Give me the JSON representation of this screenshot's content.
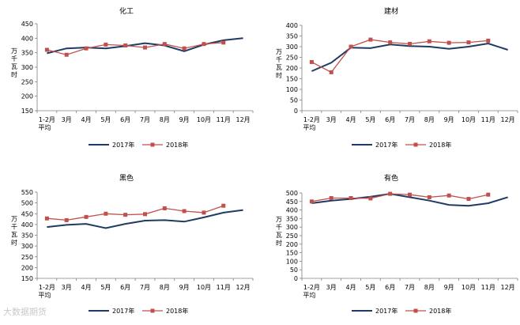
{
  "colors": {
    "series_2017": "#1f3b63",
    "series_2018": "#c0504d",
    "axis": "#808080",
    "text": "#000000"
  },
  "chart_data": [
    {
      "type": "line",
      "title": "化工",
      "ylabel": "万千瓦时",
      "ylim": [
        150,
        450
      ],
      "ystep": 50,
      "categories": [
        "1-2月平均",
        "3月",
        "4月",
        "5月",
        "6月",
        "7月",
        "8月",
        "9月",
        "10月",
        "11月",
        "12月"
      ],
      "series": [
        {
          "name": "2017年",
          "values": [
            348,
            365,
            368,
            365,
            373,
            383,
            375,
            355,
            378,
            393,
            400
          ]
        },
        {
          "name": "2018年",
          "values": [
            360,
            343,
            365,
            378,
            375,
            368,
            380,
            365,
            380,
            385,
            null
          ]
        }
      ]
    },
    {
      "type": "line",
      "title": "建材",
      "ylabel": "万千瓦时",
      "ylim": [
        0,
        400
      ],
      "ystep": 50,
      "categories": [
        "1-2月平均",
        "3月",
        "4月",
        "5月",
        "6月",
        "7月",
        "8月",
        "9月",
        "10月",
        "11月",
        "12月"
      ],
      "series": [
        {
          "name": "2017年",
          "values": [
            185,
            225,
            295,
            293,
            310,
            303,
            300,
            290,
            300,
            315,
            285
          ]
        },
        {
          "name": "2018年",
          "values": [
            228,
            180,
            300,
            333,
            320,
            313,
            325,
            318,
            320,
            328,
            null
          ]
        }
      ]
    },
    {
      "type": "line",
      "title": "黑色",
      "ylabel": "万千瓦时",
      "ylim": [
        150,
        550
      ],
      "ystep": 50,
      "categories": [
        "1-2月平均",
        "3月",
        "4月",
        "5月",
        "6月",
        "7月",
        "8月",
        "9月",
        "10月",
        "11月",
        "12月"
      ],
      "series": [
        {
          "name": "2017年",
          "values": [
            388,
            398,
            403,
            383,
            403,
            418,
            420,
            413,
            433,
            455,
            467
          ]
        },
        {
          "name": "2018年",
          "values": [
            428,
            420,
            435,
            450,
            445,
            448,
            475,
            462,
            455,
            487,
            null
          ]
        }
      ]
    },
    {
      "type": "line",
      "title": "有色",
      "ylabel": "万千瓦时",
      "ylim": [
        0,
        500
      ],
      "ystep": 50,
      "categories": [
        "1-2月平均",
        "3月",
        "4月",
        "5月",
        "6月",
        "7月",
        "8月",
        "9月",
        "10月",
        "11月",
        "12月"
      ],
      "series": [
        {
          "name": "2017年",
          "values": [
            440,
            455,
            465,
            478,
            495,
            475,
            455,
            430,
            425,
            440,
            475
          ]
        },
        {
          "name": "2018年",
          "values": [
            450,
            470,
            470,
            468,
            495,
            490,
            475,
            485,
            465,
            490,
            null
          ]
        }
      ]
    }
  ],
  "watermark": "大数据期货"
}
